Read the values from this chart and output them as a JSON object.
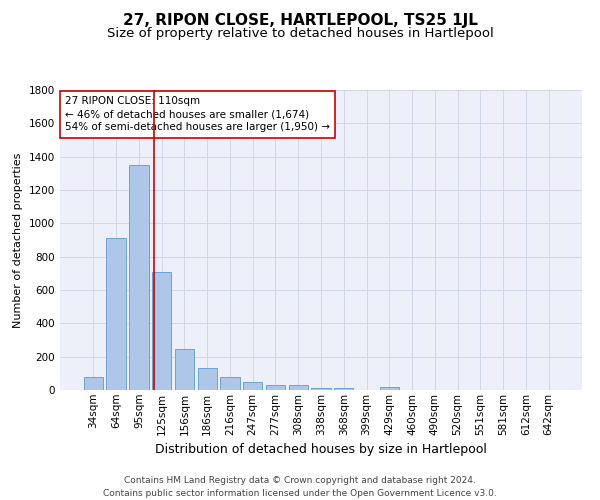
{
  "title": "27, RIPON CLOSE, HARTLEPOOL, TS25 1JL",
  "subtitle": "Size of property relative to detached houses in Hartlepool",
  "xlabel": "Distribution of detached houses by size in Hartlepool",
  "ylabel": "Number of detached properties",
  "categories": [
    "34sqm",
    "64sqm",
    "95sqm",
    "125sqm",
    "156sqm",
    "186sqm",
    "216sqm",
    "247sqm",
    "277sqm",
    "308sqm",
    "338sqm",
    "368sqm",
    "399sqm",
    "429sqm",
    "460sqm",
    "490sqm",
    "520sqm",
    "551sqm",
    "581sqm",
    "612sqm",
    "642sqm"
  ],
  "values": [
    80,
    910,
    1350,
    710,
    245,
    135,
    80,
    50,
    30,
    30,
    15,
    15,
    0,
    20,
    0,
    0,
    0,
    0,
    0,
    0,
    0
  ],
  "bar_color": "#aec6e8",
  "bar_edge_color": "#5b9bd5",
  "vline_x": 2.67,
  "vline_color": "#cc0000",
  "annotation_line1": "27 RIPON CLOSE: 110sqm",
  "annotation_line2": "← 46% of detached houses are smaller (1,674)",
  "annotation_line3": "54% of semi-detached houses are larger (1,950) →",
  "annotation_box_color": "#ffffff",
  "annotation_box_edge": "#cc0000",
  "ylim": [
    0,
    1800
  ],
  "yticks": [
    0,
    200,
    400,
    600,
    800,
    1000,
    1200,
    1400,
    1600,
    1800
  ],
  "grid_color": "#d0d8e8",
  "bg_color": "#edf0f8",
  "footer": "Contains HM Land Registry data © Crown copyright and database right 2024.\nContains public sector information licensed under the Open Government Licence v3.0.",
  "title_fontsize": 11,
  "subtitle_fontsize": 9.5,
  "xlabel_fontsize": 9,
  "ylabel_fontsize": 8,
  "tick_fontsize": 7.5,
  "annotation_fontsize": 7.5,
  "footer_fontsize": 6.5
}
